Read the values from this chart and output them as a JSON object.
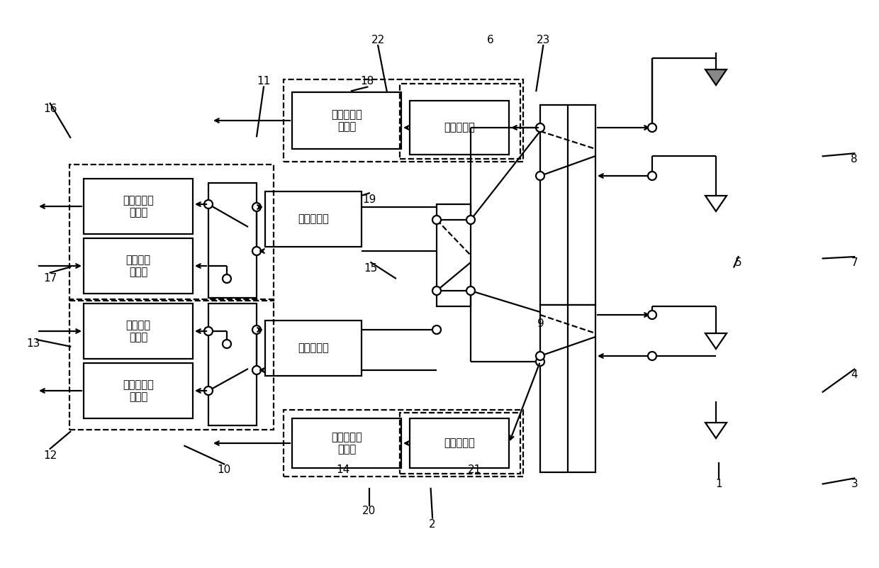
{
  "fig_width": 12.4,
  "fig_height": 8.01,
  "bg": "#ffffff",
  "lw": 1.6,
  "labels": [
    {
      "xf": 0.818,
      "yf": 0.148,
      "text": "1"
    },
    {
      "xf": 0.492,
      "yf": 0.077,
      "text": "2"
    },
    {
      "xf": 0.972,
      "yf": 0.148,
      "text": "3"
    },
    {
      "xf": 0.972,
      "yf": 0.34,
      "text": "4"
    },
    {
      "xf": 0.84,
      "yf": 0.538,
      "text": "5"
    },
    {
      "xf": 0.558,
      "yf": 0.93,
      "text": "6"
    },
    {
      "xf": 0.972,
      "yf": 0.538,
      "text": "7"
    },
    {
      "xf": 0.972,
      "yf": 0.72,
      "text": "8"
    },
    {
      "xf": 0.615,
      "yf": 0.43,
      "text": "9"
    },
    {
      "xf": 0.255,
      "yf": 0.173,
      "text": "10"
    },
    {
      "xf": 0.3,
      "yf": 0.857,
      "text": "11"
    },
    {
      "xf": 0.057,
      "yf": 0.198,
      "text": "12"
    },
    {
      "xf": 0.038,
      "yf": 0.395,
      "text": "13"
    },
    {
      "xf": 0.39,
      "yf": 0.173,
      "text": "14"
    },
    {
      "xf": 0.422,
      "yf": 0.528,
      "text": "15"
    },
    {
      "xf": 0.057,
      "yf": 0.808,
      "text": "16"
    },
    {
      "xf": 0.057,
      "yf": 0.51,
      "text": "17"
    },
    {
      "xf": 0.418,
      "yf": 0.857,
      "text": "18"
    },
    {
      "xf": 0.42,
      "yf": 0.648,
      "text": "19"
    },
    {
      "xf": 0.42,
      "yf": 0.1,
      "text": "20"
    },
    {
      "xf": 0.54,
      "yf": 0.173,
      "text": "21"
    },
    {
      "xf": 0.43,
      "yf": 0.93,
      "text": "22"
    },
    {
      "xf": 0.618,
      "yf": 0.93,
      "text": "23"
    }
  ]
}
